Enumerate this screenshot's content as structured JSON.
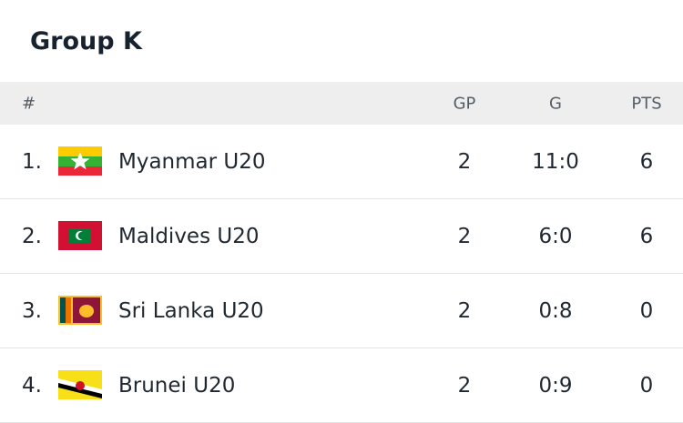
{
  "header": {
    "title": "Group K"
  },
  "table": {
    "columns": [
      "#",
      "GP",
      "G",
      "PTS"
    ],
    "rows": [
      {
        "rank": "1.",
        "team": "Myanmar U20",
        "gp": 2,
        "g": "11:0",
        "pts": 6
      },
      {
        "rank": "2.",
        "team": "Maldives U20",
        "gp": 2,
        "g": "6:0",
        "pts": 6
      },
      {
        "rank": "3.",
        "team": "Sri Lanka U20",
        "gp": 2,
        "g": "0:8",
        "pts": 0
      },
      {
        "rank": "4.",
        "team": "Brunei U20",
        "gp": 2,
        "g": "0:9",
        "pts": 0
      }
    ]
  }
}
